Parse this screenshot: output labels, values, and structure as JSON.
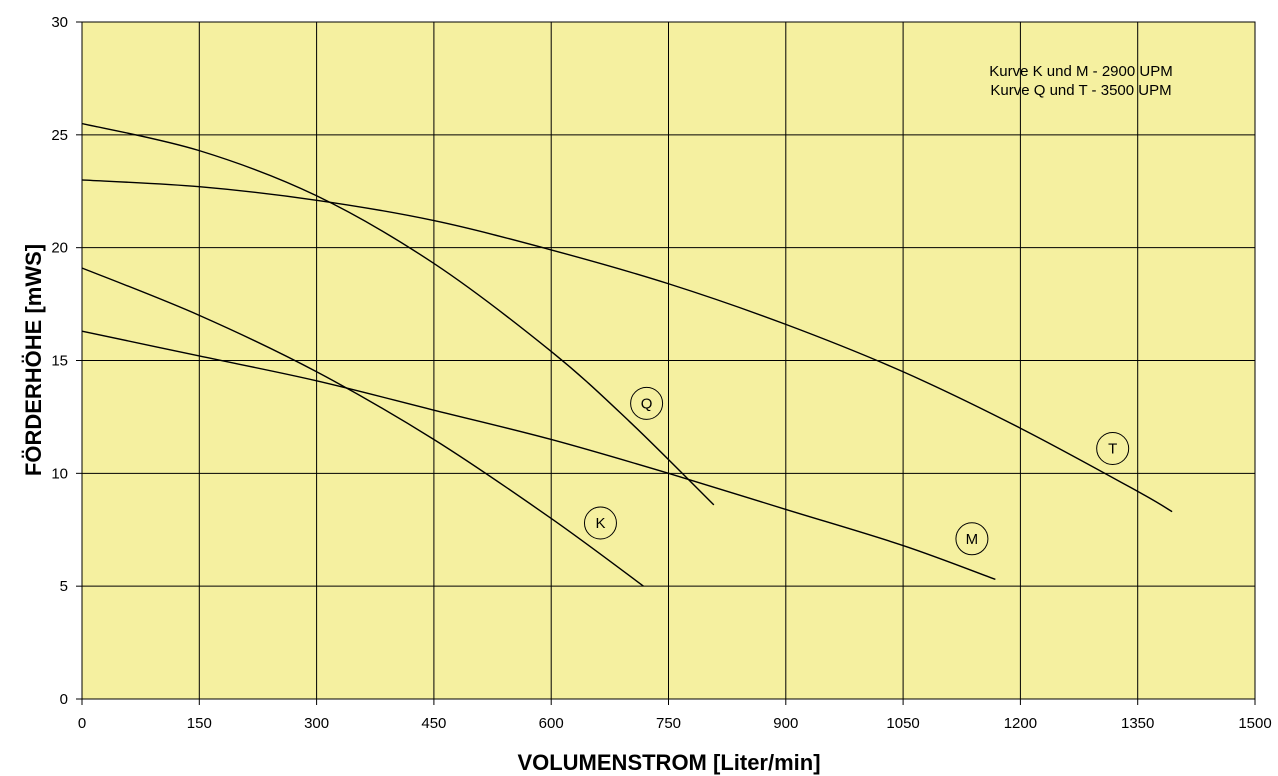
{
  "chart_data": {
    "type": "line",
    "title": "",
    "xlabel": "VOLUMENSTROM [Liter/min]",
    "ylabel": "FÖRDERHÖHE [mWS]",
    "xlim": [
      0,
      1500
    ],
    "ylim": [
      0,
      30
    ],
    "x_ticks": [
      "0",
      "150",
      "300",
      "450",
      "600",
      "750",
      "900",
      "1050",
      "1200",
      "1350",
      "1500"
    ],
    "y_ticks": [
      "0",
      "5",
      "10",
      "15",
      "20",
      "25",
      "30"
    ],
    "grid": true,
    "legend": "none",
    "colors": {
      "plot_background": "#F5F0A0",
      "line": "#000000",
      "grid": "#000000"
    },
    "annotation_lines": [
      "Kurve K und M - 2900 UPM",
      "Kurve Q und T - 3500 UPM"
    ],
    "series": [
      {
        "label": "K",
        "x": [
          0,
          150,
          300,
          450,
          600,
          718
        ],
        "y": [
          19.1,
          17.0,
          14.5,
          11.5,
          8.0,
          5.0
        ],
        "label_at": [
          663,
          7.8
        ]
      },
      {
        "label": "M",
        "x": [
          0,
          150,
          300,
          450,
          600,
          750,
          900,
          1050,
          1168
        ],
        "y": [
          16.3,
          15.2,
          14.1,
          12.8,
          11.5,
          10.0,
          8.4,
          6.8,
          5.3
        ],
        "label_at": [
          1138,
          7.1
        ]
      },
      {
        "label": "Q",
        "x": [
          0,
          150,
          300,
          450,
          600,
          700,
          808
        ],
        "y": [
          25.5,
          24.3,
          22.3,
          19.3,
          15.4,
          12.3,
          8.6
        ],
        "label_at": [
          722,
          13.1
        ]
      },
      {
        "label": "T",
        "x": [
          0,
          150,
          300,
          450,
          600,
          750,
          900,
          1050,
          1200,
          1350,
          1394
        ],
        "y": [
          23.0,
          22.7,
          22.1,
          21.2,
          19.9,
          18.4,
          16.6,
          14.5,
          12.0,
          9.2,
          8.3
        ],
        "label_at": [
          1318,
          11.1
        ]
      }
    ]
  }
}
